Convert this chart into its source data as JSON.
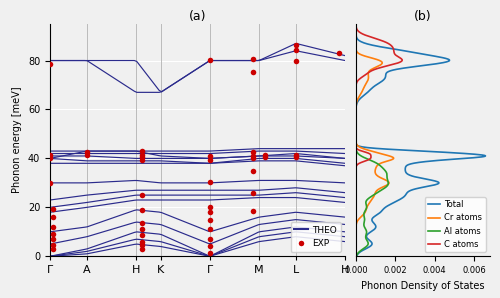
{
  "title_a": "(a)",
  "title_b": "(b)",
  "ylabel": "Phonon energy [meV]",
  "xlabel_b": "Phonon Density of States",
  "ylim": [
    0,
    95
  ],
  "xtick_labels": [
    "Γ",
    "A",
    "H",
    "K",
    "Γ",
    "M",
    "L",
    "H"
  ],
  "band_color": "#2B2B8C",
  "exp_color": "#CC0000",
  "dos_colors": {
    "Total": "#1f77b4",
    "Cr atoms": "#ff7f0e",
    "Al atoms": "#2ca02c",
    "C atoms": "#d62728"
  },
  "dos_xlim": [
    0,
    0.0068
  ],
  "dos_xticks": [
    0.0,
    0.002,
    0.004,
    0.006
  ],
  "background_color": "#f0f0f0",
  "grid_color": "white",
  "band_linewidth": 0.85,
  "exp_markersize": 4.0
}
